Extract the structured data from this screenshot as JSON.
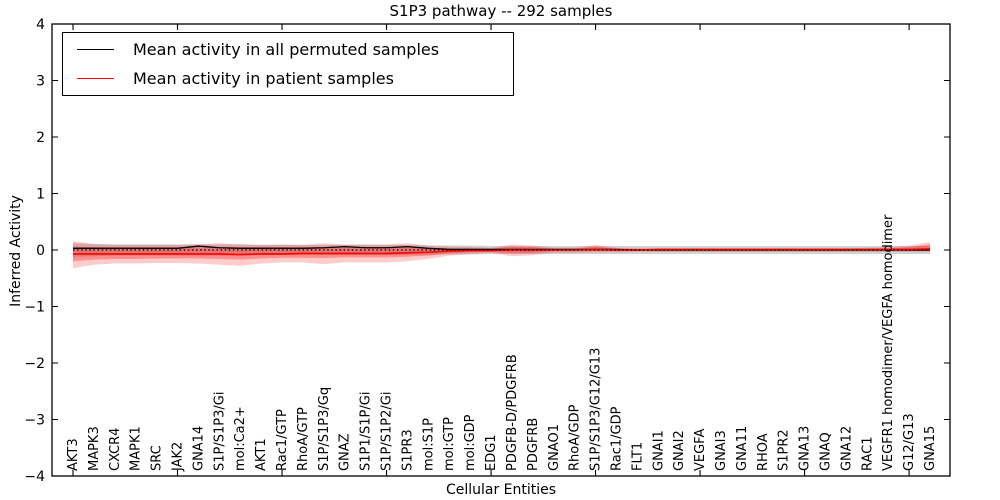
{
  "figure": {
    "title": "S1P3 pathway -- 292 samples"
  },
  "chart_data": {
    "type": "line",
    "title": "S1P3 pathway -- 292 samples",
    "xlabel": "Cellular Entities",
    "ylabel": "Inferred Activity",
    "ylim": [
      -4,
      4
    ],
    "ytick_labels": [
      "4",
      "3",
      "2",
      "1",
      "0",
      "−1",
      "−2",
      "−3",
      "−4"
    ],
    "ytick_values": [
      4,
      3,
      2,
      1,
      0,
      -1,
      -2,
      -3,
      -4
    ],
    "xtick_interval": 5,
    "grid": false,
    "legend_position": "upper-left",
    "zero_line": {
      "style": "dotted",
      "color": "#000000",
      "value": 0
    },
    "categories": [
      "AKT3",
      "MAPK3",
      "CXCR4",
      "MAPK1",
      "SRC",
      "JAK2",
      "GNA14",
      "S1P/S1P3/Gi",
      "mol:Ca2+",
      "AKT1",
      "Rac1/GTP",
      "RhoA/GTP",
      "S1P/S1P3/Gq",
      "GNAZ",
      "S1P1/S1P/Gi",
      "S1P/S1P2/Gi",
      "S1PR3",
      "mol:S1P",
      "mol:GTP",
      "mol:GDP",
      "EDG1",
      "PDGFB-D/PDGFRB",
      "PDGFRB",
      "GNAO1",
      "RhoA/GDP",
      "S1P/S1P3/G12/G13",
      "Rac1/GDP",
      "FLT1",
      "GNAI1",
      "GNAI2",
      "VEGFA",
      "GNAI3",
      "GNA11",
      "RHOA",
      "S1PR2",
      "GNA13",
      "GNAQ",
      "GNA12",
      "RAC1",
      "VEGFR1 homodimer/VEGFA homodimer",
      "G12/G13",
      "GNA15"
    ],
    "series": [
      {
        "name": "Mean activity in all permuted samples",
        "color": "#000000",
        "values": [
          0.03,
          0.03,
          0.03,
          0.03,
          0.03,
          0.03,
          0.07,
          0.04,
          0.03,
          0.03,
          0.03,
          0.03,
          0.04,
          0.06,
          0.04,
          0.04,
          0.06,
          0.03,
          0.01,
          0.01,
          0.01,
          0.01,
          0.01,
          0.01,
          0.01,
          0.01,
          0.01,
          0.0,
          0.0,
          0.0,
          0.0,
          0.0,
          0.0,
          0.0,
          0.0,
          0.0,
          0.0,
          0.0,
          0.0,
          0.0,
          0.0,
          0.0
        ]
      },
      {
        "name": "Mean activity in patient samples",
        "color": "#ff0000",
        "values": [
          -0.07,
          -0.07,
          -0.07,
          -0.07,
          -0.07,
          -0.07,
          -0.07,
          -0.07,
          -0.08,
          -0.07,
          -0.07,
          -0.06,
          -0.06,
          -0.06,
          -0.06,
          -0.06,
          -0.05,
          -0.04,
          -0.02,
          -0.01,
          -0.01,
          0.0,
          0.0,
          0.0,
          0.0,
          0.01,
          0.0,
          0.0,
          0.01,
          0.01,
          0.01,
          0.01,
          0.01,
          0.01,
          0.01,
          0.01,
          0.01,
          0.01,
          0.01,
          0.01,
          0.01,
          0.02
        ]
      }
    ],
    "bands": [
      {
        "name": "permuted-samples-std-band",
        "color": "#999999",
        "opacity": 0.45,
        "top": [
          0.12,
          0.11,
          0.1,
          0.1,
          0.1,
          0.1,
          0.1,
          0.1,
          0.1,
          0.09,
          0.09,
          0.09,
          0.09,
          0.09,
          0.09,
          0.09,
          0.09,
          0.08,
          0.08,
          0.08,
          0.07,
          0.07,
          0.07,
          0.07,
          0.07,
          0.07,
          0.07,
          0.07,
          0.07,
          0.07,
          0.07,
          0.07,
          0.07,
          0.07,
          0.07,
          0.07,
          0.07,
          0.07,
          0.07,
          0.07,
          0.07,
          0.07
        ],
        "bottom": [
          -0.12,
          -0.11,
          -0.1,
          -0.1,
          -0.1,
          -0.1,
          -0.1,
          -0.1,
          -0.1,
          -0.09,
          -0.09,
          -0.09,
          -0.09,
          -0.09,
          -0.09,
          -0.09,
          -0.09,
          -0.08,
          -0.08,
          -0.08,
          -0.07,
          -0.07,
          -0.07,
          -0.07,
          -0.07,
          -0.07,
          -0.07,
          -0.07,
          -0.07,
          -0.07,
          -0.07,
          -0.07,
          -0.07,
          -0.07,
          -0.07,
          -0.07,
          -0.07,
          -0.07,
          -0.07,
          -0.07,
          -0.07,
          -0.07
        ]
      },
      {
        "name": "patient-samples-outer-band",
        "color": "#ff0000",
        "opacity": 0.2,
        "top": [
          0.16,
          0.1,
          0.09,
          0.09,
          0.09,
          0.09,
          0.1,
          0.12,
          0.1,
          0.09,
          0.1,
          0.09,
          0.12,
          0.1,
          0.1,
          0.1,
          0.12,
          0.08,
          0.06,
          0.05,
          0.04,
          0.1,
          0.08,
          0.04,
          0.04,
          0.09,
          0.04,
          0.03,
          0.03,
          0.03,
          0.03,
          0.03,
          0.03,
          0.03,
          0.03,
          0.03,
          0.03,
          0.03,
          0.04,
          0.05,
          0.08,
          0.14
        ],
        "bottom": [
          -0.32,
          -0.26,
          -0.24,
          -0.24,
          -0.23,
          -0.23,
          -0.24,
          -0.26,
          -0.28,
          -0.24,
          -0.22,
          -0.22,
          -0.25,
          -0.22,
          -0.22,
          -0.22,
          -0.2,
          -0.16,
          -0.1,
          -0.07,
          -0.05,
          -0.11,
          -0.09,
          -0.05,
          -0.05,
          -0.04,
          -0.04,
          -0.03,
          -0.03,
          -0.03,
          -0.03,
          -0.03,
          -0.03,
          -0.03,
          -0.03,
          -0.03,
          -0.03,
          -0.03,
          -0.03,
          -0.03,
          -0.03,
          -0.03
        ]
      },
      {
        "name": "patient-samples-inner-band",
        "color": "#ff0000",
        "opacity": 0.3,
        "top": [
          0.06,
          0.05,
          0.05,
          0.05,
          0.05,
          0.05,
          0.06,
          0.05,
          0.05,
          0.05,
          0.05,
          0.05,
          0.05,
          0.06,
          0.05,
          0.05,
          0.06,
          0.04,
          0.03,
          0.03,
          0.02,
          0.06,
          0.05,
          0.02,
          0.02,
          0.06,
          0.02,
          0.02,
          0.02,
          0.02,
          0.02,
          0.02,
          0.02,
          0.02,
          0.02,
          0.02,
          0.02,
          0.02,
          0.02,
          0.03,
          0.05,
          0.1
        ],
        "bottom": [
          -0.2,
          -0.17,
          -0.16,
          -0.16,
          -0.15,
          -0.15,
          -0.15,
          -0.16,
          -0.17,
          -0.15,
          -0.14,
          -0.14,
          -0.14,
          -0.13,
          -0.13,
          -0.13,
          -0.12,
          -0.1,
          -0.06,
          -0.04,
          -0.03,
          -0.06,
          -0.05,
          -0.02,
          -0.02,
          -0.02,
          -0.02,
          -0.02,
          -0.02,
          -0.02,
          -0.02,
          -0.02,
          -0.02,
          -0.02,
          -0.02,
          -0.02,
          -0.02,
          -0.02,
          -0.02,
          -0.02,
          -0.02,
          -0.02
        ]
      }
    ]
  }
}
